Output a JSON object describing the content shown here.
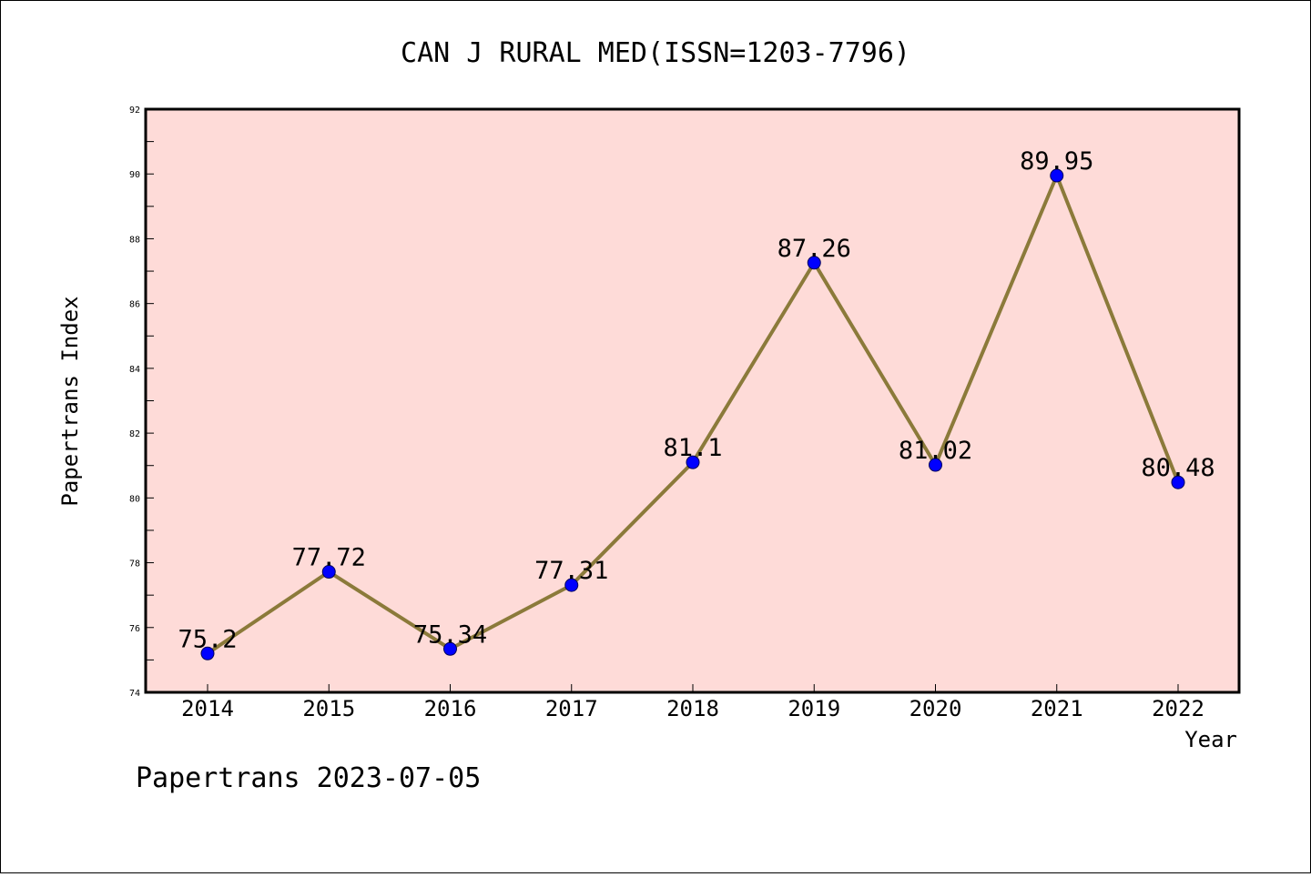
{
  "chart_data": {
    "type": "line",
    "title": "CAN J RURAL MED(ISSN=1203-7796)",
    "xlabel": "Year",
    "ylabel": "Papertrans Index",
    "categories": [
      "2014",
      "2015",
      "2016",
      "2017",
      "2018",
      "2019",
      "2020",
      "2021",
      "2022"
    ],
    "values": [
      75.2,
      77.72,
      75.34,
      77.31,
      81.1,
      87.26,
      81.02,
      89.95,
      80.48
    ],
    "data_labels": [
      "75.2",
      "77.72",
      "75.34",
      "77.31",
      "81.1",
      "87.26",
      "81.02",
      "89.95",
      "80.48"
    ],
    "ylim": [
      74,
      92
    ],
    "yticks": [
      "74",
      "76",
      "78",
      "80",
      "82",
      "84",
      "86",
      "88",
      "90",
      "92"
    ],
    "grid": false,
    "colors": {
      "plot_background": "#fedbd8",
      "line": "#8b7a3a",
      "marker": "#0000ff"
    }
  },
  "footer": "Papertrans 2023-07-05"
}
